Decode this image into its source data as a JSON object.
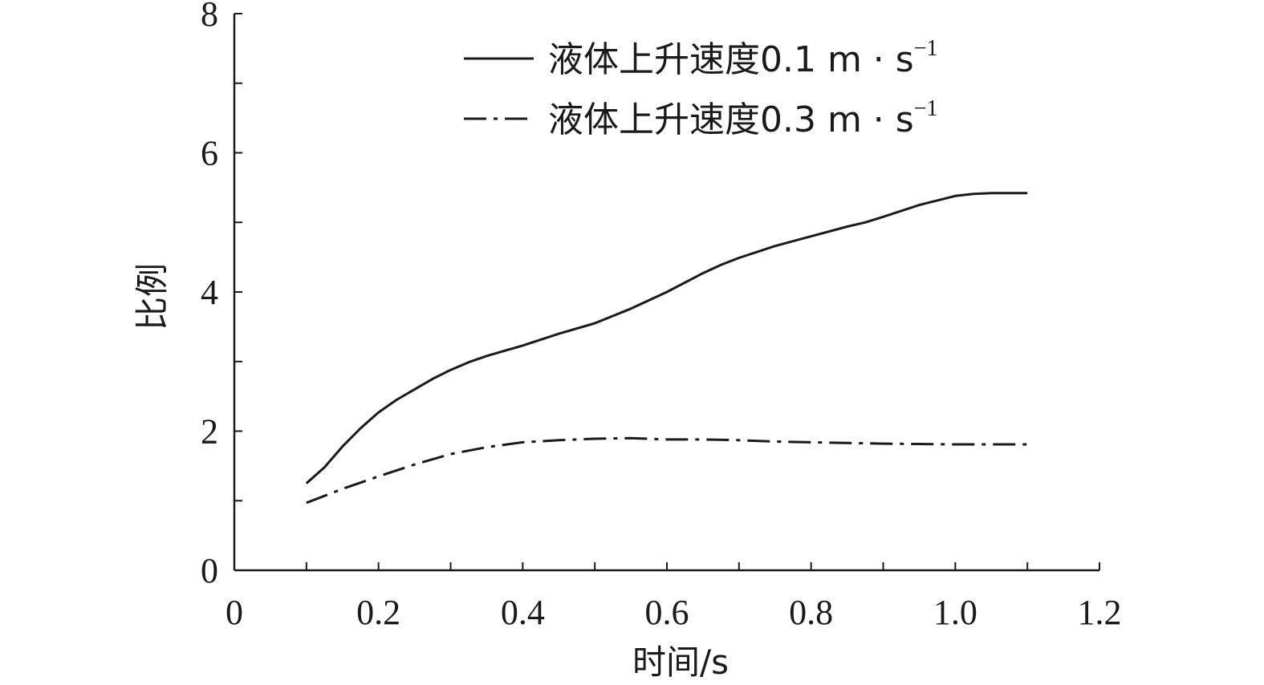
{
  "chart_data": {
    "type": "line",
    "xlabel": "时间/s",
    "ylabel": "比例",
    "xlim": [
      0,
      1.2
    ],
    "ylim": [
      0,
      8
    ],
    "x_ticks": [
      "0",
      "0.2",
      "0.4",
      "0.6",
      "0.8",
      "1.0",
      "1.2"
    ],
    "y_ticks": [
      "0",
      "2",
      "4",
      "6",
      "8"
    ],
    "grid": false,
    "legend_position": "top-right",
    "series": [
      {
        "name": "液体上升速度0.1 m · s",
        "name_superscript": "−1",
        "line_style": "solid",
        "color": "#1a1a1a",
        "x": [
          0.1,
          0.125,
          0.15,
          0.175,
          0.2,
          0.225,
          0.25,
          0.275,
          0.3,
          0.325,
          0.35,
          0.4,
          0.45,
          0.5,
          0.55,
          0.6,
          0.65,
          0.675,
          0.7,
          0.75,
          0.8,
          0.85,
          0.875,
          0.9,
          0.95,
          1.0,
          1.025,
          1.05,
          1.1
        ],
        "y": [
          1.25,
          1.48,
          1.78,
          2.04,
          2.27,
          2.45,
          2.6,
          2.75,
          2.88,
          2.99,
          3.08,
          3.23,
          3.4,
          3.55,
          3.76,
          4.0,
          4.27,
          4.39,
          4.49,
          4.66,
          4.8,
          4.94,
          5.0,
          5.08,
          5.25,
          5.38,
          5.41,
          5.42,
          5.42
        ]
      },
      {
        "name": "液体上升速度0.3 m · s",
        "name_superscript": "−1",
        "line_style": "dashdot",
        "color": "#1a1a1a",
        "x": [
          0.1,
          0.15,
          0.2,
          0.25,
          0.3,
          0.35,
          0.4,
          0.45,
          0.5,
          0.55,
          0.6,
          0.65,
          0.7,
          0.75,
          0.8,
          0.9,
          1.0,
          1.1
        ],
        "y": [
          0.97,
          1.17,
          1.35,
          1.52,
          1.67,
          1.77,
          1.84,
          1.87,
          1.89,
          1.9,
          1.88,
          1.88,
          1.87,
          1.85,
          1.84,
          1.82,
          1.81,
          1.81
        ]
      }
    ]
  }
}
